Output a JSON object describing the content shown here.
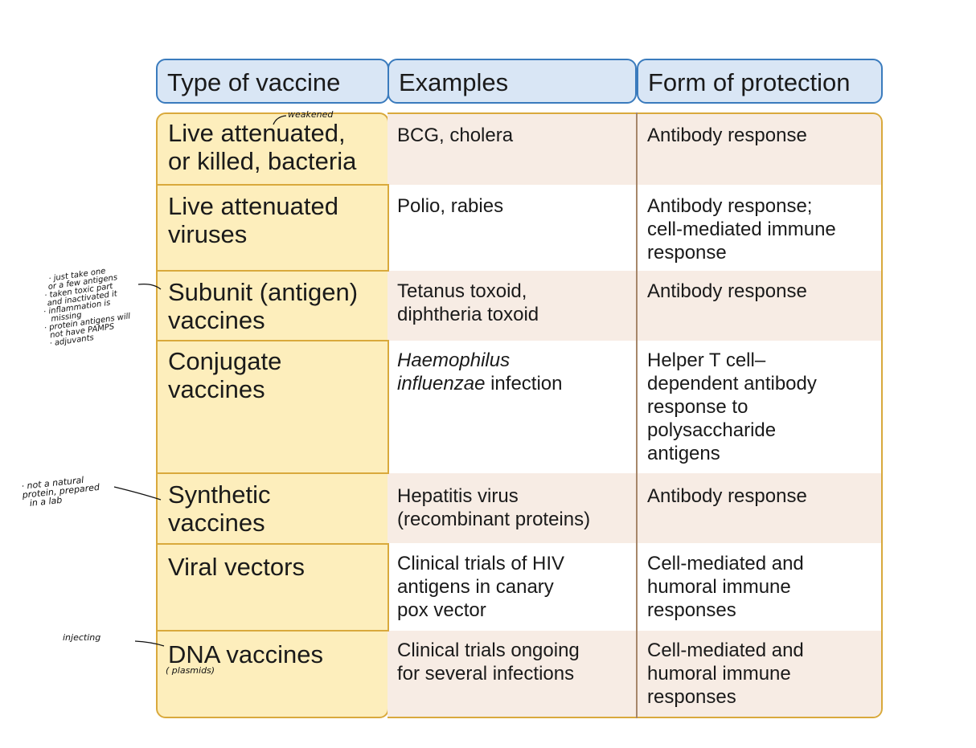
{
  "headers": [
    "Type of vaccine",
    "Examples",
    "Form of protection"
  ],
  "rows": [
    {
      "type": [
        "Live attenuated,",
        "or killed, bacteria"
      ],
      "examples": [
        "BCG, cholera"
      ],
      "protection": [
        "Antibody response"
      ]
    },
    {
      "type": [
        "Live attenuated",
        "viruses"
      ],
      "examples": [
        "Polio, rabies"
      ],
      "protection": [
        "Antibody response;",
        "cell-mediated immune",
        "response"
      ]
    },
    {
      "type": [
        "Subunit (antigen)",
        "vaccines"
      ],
      "examples": [
        "Tetanus toxoid,",
        "diphtheria toxoid"
      ],
      "protection": [
        "Antibody response"
      ]
    },
    {
      "type": [
        "Conjugate",
        "vaccines"
      ],
      "examples_italic": [
        "Haemophilus",
        "influenzae"
      ],
      "examples_rest": " infection",
      "protection": [
        "Helper T cell–",
        "dependent antibody",
        "response to",
        "polysaccharide",
        "antigens"
      ]
    },
    {
      "type": [
        "Synthetic",
        "vaccines"
      ],
      "examples": [
        "Hepatitis virus",
        "(recombinant proteins)"
      ],
      "protection": [
        "Antibody response"
      ]
    },
    {
      "type": [
        "Viral vectors"
      ],
      "examples": [
        "Clinical trials of HIV",
        "antigens in canary",
        "pox vector"
      ],
      "protection": [
        "Cell-mediated and",
        "humoral immune",
        "responses"
      ]
    },
    {
      "type": [
        "DNA vaccines"
      ],
      "examples": [
        "Clinical trials ongoing",
        "for several infections"
      ],
      "protection": [
        "Cell-mediated and",
        "humoral immune",
        "responses"
      ]
    }
  ],
  "annotations": {
    "weakened": "weakened",
    "subunit_notes": [
      "· just take one",
      "or a few antigens",
      "· taken toxic part",
      "and inactivated it",
      "· inflammation is",
      "missing",
      "· protein antigens will",
      "not have PAMPS",
      "· adjuvants"
    ],
    "synthetic_notes": [
      "· not a natural",
      "protein, prepared",
      "in a lab"
    ],
    "injecting": "injecting",
    "plasmids": "( plasmids)"
  }
}
